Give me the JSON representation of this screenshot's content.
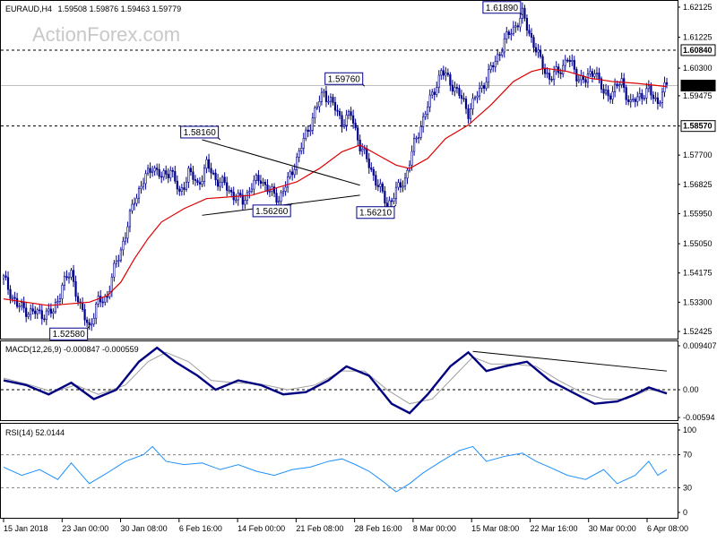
{
  "header": {
    "symbol": "EURAUD,H4",
    "ohlc": "1.59508 1.59876 1.59463 1.59779",
    "watermark": "ActionForex.com"
  },
  "colors": {
    "candle": "#00008b",
    "ma": "#dd0000",
    "macd_main": "#000080",
    "macd_signal": "#a0a0a0",
    "rsi": "#1e90ff",
    "level_line": "#000000",
    "current_price_line": "#c0c0c0",
    "grid": "#000000"
  },
  "chart_data": [
    {
      "type": "candlestick",
      "title": "EURAUD,H4",
      "ylim": [
        1.52425,
        1.62125
      ],
      "y_ticks": [
        "1.62125",
        "1.61225",
        "1.60300",
        "1.59475",
        "1.58570",
        "1.57700",
        "1.56825",
        "1.55950",
        "1.55050",
        "1.54175",
        "1.53300",
        "1.52425"
      ],
      "x_tick_labels": [
        "15 Jan 2018",
        "23 Jan 00:00",
        "30 Jan 08:00",
        "6 Feb 16:00",
        "14 Feb 00:00",
        "21 Feb 08:00",
        "28 Feb 16:00",
        "8 Mar 00:00",
        "15 Mar 08:00",
        "22 Mar 16:00",
        "30 Mar 00:00",
        "6 Apr 08:00"
      ],
      "price_path": [
        [
          0,
          1.54
        ],
        [
          6,
          1.532
        ],
        [
          12,
          1.53
        ],
        [
          18,
          1.5295
        ],
        [
          22,
          1.53
        ],
        [
          26,
          1.538
        ],
        [
          30,
          1.542
        ],
        [
          34,
          1.531
        ],
        [
          38,
          1.5258
        ],
        [
          42,
          1.533
        ],
        [
          46,
          1.535
        ],
        [
          50,
          1.545
        ],
        [
          54,
          1.553
        ],
        [
          58,
          1.564
        ],
        [
          62,
          1.569
        ],
        [
          66,
          1.574
        ],
        [
          70,
          1.57
        ],
        [
          74,
          1.573
        ],
        [
          78,
          1.565
        ],
        [
          82,
          1.572
        ],
        [
          86,
          1.568
        ],
        [
          90,
          1.574
        ],
        [
          94,
          1.57
        ],
        [
          98,
          1.568
        ],
        [
          102,
          1.565
        ],
        [
          106,
          1.563
        ],
        [
          110,
          1.568
        ],
        [
          114,
          1.57
        ],
        [
          118,
          1.566
        ],
        [
          122,
          1.564
        ],
        [
          126,
          1.569
        ],
        [
          130,
          1.576
        ],
        [
          134,
          1.583
        ],
        [
          138,
          1.59
        ],
        [
          142,
          1.596
        ],
        [
          146,
          1.592
        ],
        [
          150,
          1.587
        ],
        [
          154,
          1.589
        ],
        [
          158,
          1.58
        ],
        [
          162,
          1.574
        ],
        [
          166,
          1.568
        ],
        [
          170,
          1.5621
        ],
        [
          174,
          1.566
        ],
        [
          178,
          1.57
        ],
        [
          182,
          1.58
        ],
        [
          186,
          1.588
        ],
        [
          190,
          1.595
        ],
        [
          194,
          1.602
        ],
        [
          198,
          1.599
        ],
        [
          202,
          1.595
        ],
        [
          206,
          1.59
        ],
        [
          210,
          1.595
        ],
        [
          214,
          1.6
        ],
        [
          218,
          1.605
        ],
        [
          222,
          1.611
        ],
        [
          226,
          1.615
        ],
        [
          230,
          1.6189
        ],
        [
          234,
          1.612
        ],
        [
          238,
          1.605
        ],
        [
          242,
          1.6
        ],
        [
          246,
          1.602
        ],
        [
          250,
          1.606
        ],
        [
          254,
          1.601
        ],
        [
          258,
          1.599
        ],
        [
          262,
          1.603
        ],
        [
          266,
          1.595
        ],
        [
          270,
          1.596
        ],
        [
          274,
          1.599
        ],
        [
          278,
          1.592
        ],
        [
          282,
          1.595
        ],
        [
          286,
          1.596
        ],
        [
          290,
          1.593
        ],
        [
          294,
          1.5978
        ]
      ],
      "ma_path": [
        [
          0,
          1.534
        ],
        [
          20,
          1.532
        ],
        [
          38,
          1.533
        ],
        [
          46,
          1.535
        ],
        [
          52,
          1.539
        ],
        [
          58,
          1.546
        ],
        [
          64,
          1.552
        ],
        [
          70,
          1.557
        ],
        [
          80,
          1.561
        ],
        [
          90,
          1.564
        ],
        [
          100,
          1.5645
        ],
        [
          110,
          1.565
        ],
        [
          120,
          1.567
        ],
        [
          130,
          1.569
        ],
        [
          140,
          1.573
        ],
        [
          150,
          1.578
        ],
        [
          158,
          1.58
        ],
        [
          166,
          1.577
        ],
        [
          174,
          1.574
        ],
        [
          180,
          1.573
        ],
        [
          188,
          1.576
        ],
        [
          196,
          1.582
        ],
        [
          206,
          1.586
        ],
        [
          216,
          1.592
        ],
        [
          226,
          1.599
        ],
        [
          234,
          1.602
        ],
        [
          240,
          1.603
        ],
        [
          250,
          1.602
        ],
        [
          260,
          1.6
        ],
        [
          270,
          1.599
        ],
        [
          280,
          1.5985
        ],
        [
          294,
          1.5975
        ]
      ],
      "horizontal_levels": [
        1.6084,
        1.5857
      ],
      "current_price": 1.59779,
      "trendlines": [
        {
          "from": [
            88,
            1.5816
          ],
          "to": [
            158,
            1.568
          ]
        },
        {
          "from": [
            88,
            1.559
          ],
          "to": [
            158,
            1.565
          ]
        }
      ],
      "annotations": [
        {
          "label": "1.61890",
          "x": 230,
          "y": 1.6189
        },
        {
          "label": "1.59760",
          "x": 160,
          "y": 1.5976
        },
        {
          "label": "1.58160",
          "x": 96,
          "y": 1.5816
        },
        {
          "label": "1.56260",
          "x": 128,
          "y": 1.5626
        },
        {
          "label": "1.56210",
          "x": 174,
          "y": 1.5621
        },
        {
          "label": "1.52580",
          "x": 38,
          "y": 1.5258
        }
      ],
      "right_labels": [
        {
          "label": "1.60840",
          "y": 1.6084
        },
        {
          "label": "1.59779",
          "y": 1.59779
        },
        {
          "label": "1.58570",
          "y": 1.5857
        }
      ]
    },
    {
      "type": "line",
      "title": "MACD(12,26,9) -0.000847 -0.000559",
      "ylim": [
        -0.00594,
        0.009407
      ],
      "y_ticks": [
        "0.009407",
        "0.00",
        "-0.00594"
      ],
      "series": [
        {
          "name": "MACD",
          "path": [
            [
              0,
              0.002
            ],
            [
              10,
              0.001
            ],
            [
              20,
              -0.001
            ],
            [
              30,
              0.0015
            ],
            [
              40,
              -0.002
            ],
            [
              50,
              0.0
            ],
            [
              60,
              0.006
            ],
            [
              68,
              0.009
            ],
            [
              76,
              0.006
            ],
            [
              86,
              0.003
            ],
            [
              94,
              0.0
            ],
            [
              104,
              0.002
            ],
            [
              114,
              0.001
            ],
            [
              124,
              -0.001
            ],
            [
              134,
              -0.0005
            ],
            [
              144,
              0.002
            ],
            [
              152,
              0.005
            ],
            [
              162,
              0.003
            ],
            [
              172,
              -0.003
            ],
            [
              180,
              -0.005
            ],
            [
              188,
              -0.001
            ],
            [
              198,
              0.005
            ],
            [
              206,
              0.008
            ],
            [
              214,
              0.004
            ],
            [
              222,
              0.005
            ],
            [
              232,
              0.006
            ],
            [
              242,
              0.002
            ],
            [
              252,
              -0.0005
            ],
            [
              262,
              -0.003
            ],
            [
              272,
              -0.0025
            ],
            [
              280,
              -0.001
            ],
            [
              286,
              0.0005
            ],
            [
              294,
              -0.0008
            ]
          ]
        },
        {
          "name": "Signal",
          "path": [
            [
              0,
              0.0025
            ],
            [
              12,
              0.001
            ],
            [
              22,
              -0.0005
            ],
            [
              32,
              0.001
            ],
            [
              42,
              -0.001
            ],
            [
              54,
              0.001
            ],
            [
              64,
              0.006
            ],
            [
              72,
              0.008
            ],
            [
              82,
              0.006
            ],
            [
              92,
              0.002
            ],
            [
              102,
              0.0015
            ],
            [
              114,
              0.0012
            ],
            [
              126,
              0.0
            ],
            [
              138,
              0.001
            ],
            [
              150,
              0.004
            ],
            [
              160,
              0.004
            ],
            [
              170,
              0.0
            ],
            [
              180,
              -0.003
            ],
            [
              190,
              -0.002
            ],
            [
              200,
              0.003
            ],
            [
              208,
              0.007
            ],
            [
              216,
              0.0055
            ],
            [
              226,
              0.0055
            ],
            [
              236,
              0.005
            ],
            [
              246,
              0.002
            ],
            [
              256,
              -0.0005
            ],
            [
              266,
              -0.002
            ],
            [
              276,
              -0.002
            ],
            [
              286,
              0.0
            ],
            [
              294,
              -0.0006
            ]
          ]
        }
      ],
      "trendline": {
        "from": [
          208,
          0.0082
        ],
        "to": [
          294,
          0.004
        ]
      }
    },
    {
      "type": "line",
      "title": "RSI(14) 52.0144",
      "ylim": [
        0,
        100
      ],
      "y_ticks": [
        "100",
        "70",
        "30",
        "0"
      ],
      "levels": [
        70,
        30
      ],
      "series": [
        {
          "name": "RSI",
          "path": [
            [
              0,
              55
            ],
            [
              8,
              45
            ],
            [
              16,
              52
            ],
            [
              24,
              40
            ],
            [
              30,
              60
            ],
            [
              38,
              35
            ],
            [
              46,
              48
            ],
            [
              54,
              62
            ],
            [
              62,
              70
            ],
            [
              66,
              80
            ],
            [
              72,
              62
            ],
            [
              80,
              58
            ],
            [
              88,
              60
            ],
            [
              96,
              52
            ],
            [
              104,
              58
            ],
            [
              112,
              50
            ],
            [
              120,
              45
            ],
            [
              128,
              52
            ],
            [
              136,
              55
            ],
            [
              144,
              62
            ],
            [
              150,
              65
            ],
            [
              156,
              58
            ],
            [
              162,
              50
            ],
            [
              168,
              38
            ],
            [
              174,
              25
            ],
            [
              180,
              35
            ],
            [
              186,
              48
            ],
            [
              194,
              62
            ],
            [
              202,
              75
            ],
            [
              208,
              80
            ],
            [
              214,
              62
            ],
            [
              222,
              68
            ],
            [
              230,
              72
            ],
            [
              236,
              62
            ],
            [
              242,
              55
            ],
            [
              250,
              45
            ],
            [
              258,
              40
            ],
            [
              266,
              52
            ],
            [
              272,
              35
            ],
            [
              280,
              45
            ],
            [
              286,
              62
            ],
            [
              290,
              45
            ],
            [
              294,
              52
            ]
          ]
        }
      ]
    }
  ]
}
